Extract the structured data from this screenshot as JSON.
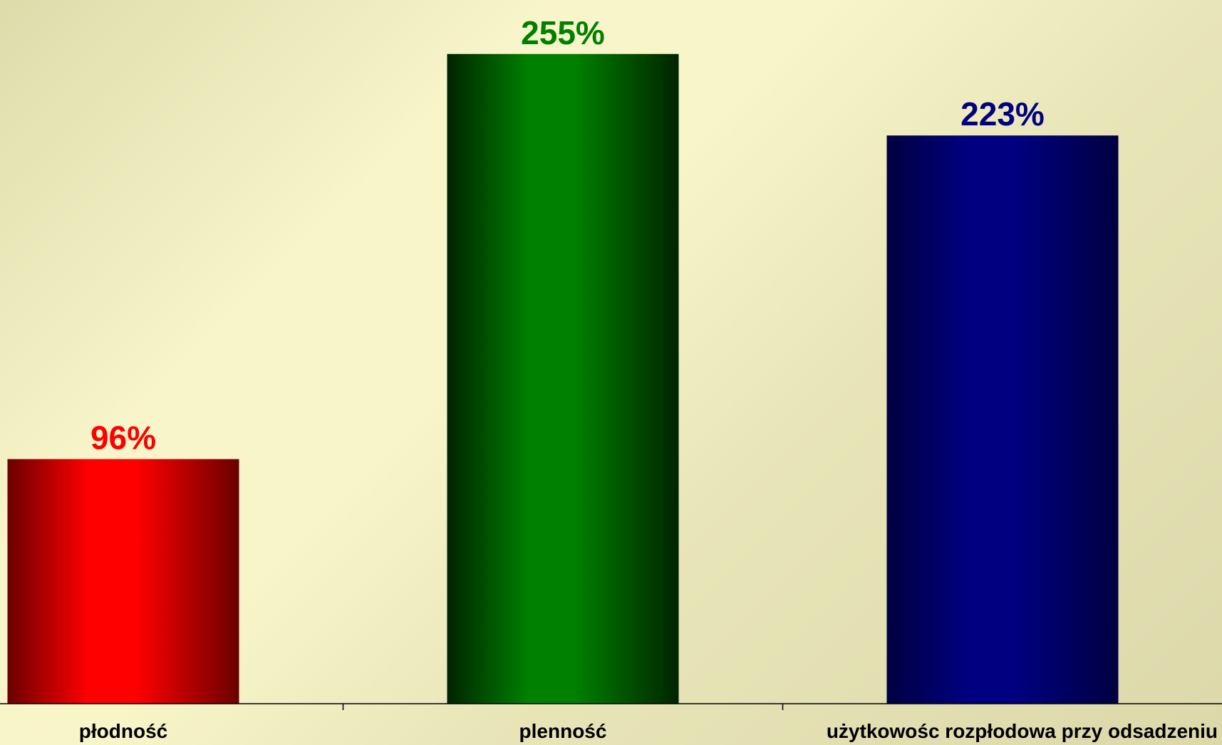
{
  "chart_data": {
    "type": "bar",
    "title": "",
    "xlabel": "",
    "ylabel": "",
    "ylim": [
      0,
      265
    ],
    "grid": false,
    "legend": "none",
    "categories": [
      "płodność",
      "plenność",
      "użytkowośc rozpłodowa przy odsadzeniu"
    ],
    "values": [
      96,
      255,
      223
    ],
    "data_labels": [
      "96%",
      "255%",
      "223%"
    ],
    "colors": {
      "bar_main": [
        "#ff0000",
        "#008000",
        "#000080"
      ],
      "bar_edge": [
        "#6b0000",
        "#002400",
        "#000040"
      ],
      "label": [
        "#ff0000",
        "#008000",
        "#000080"
      ]
    }
  }
}
